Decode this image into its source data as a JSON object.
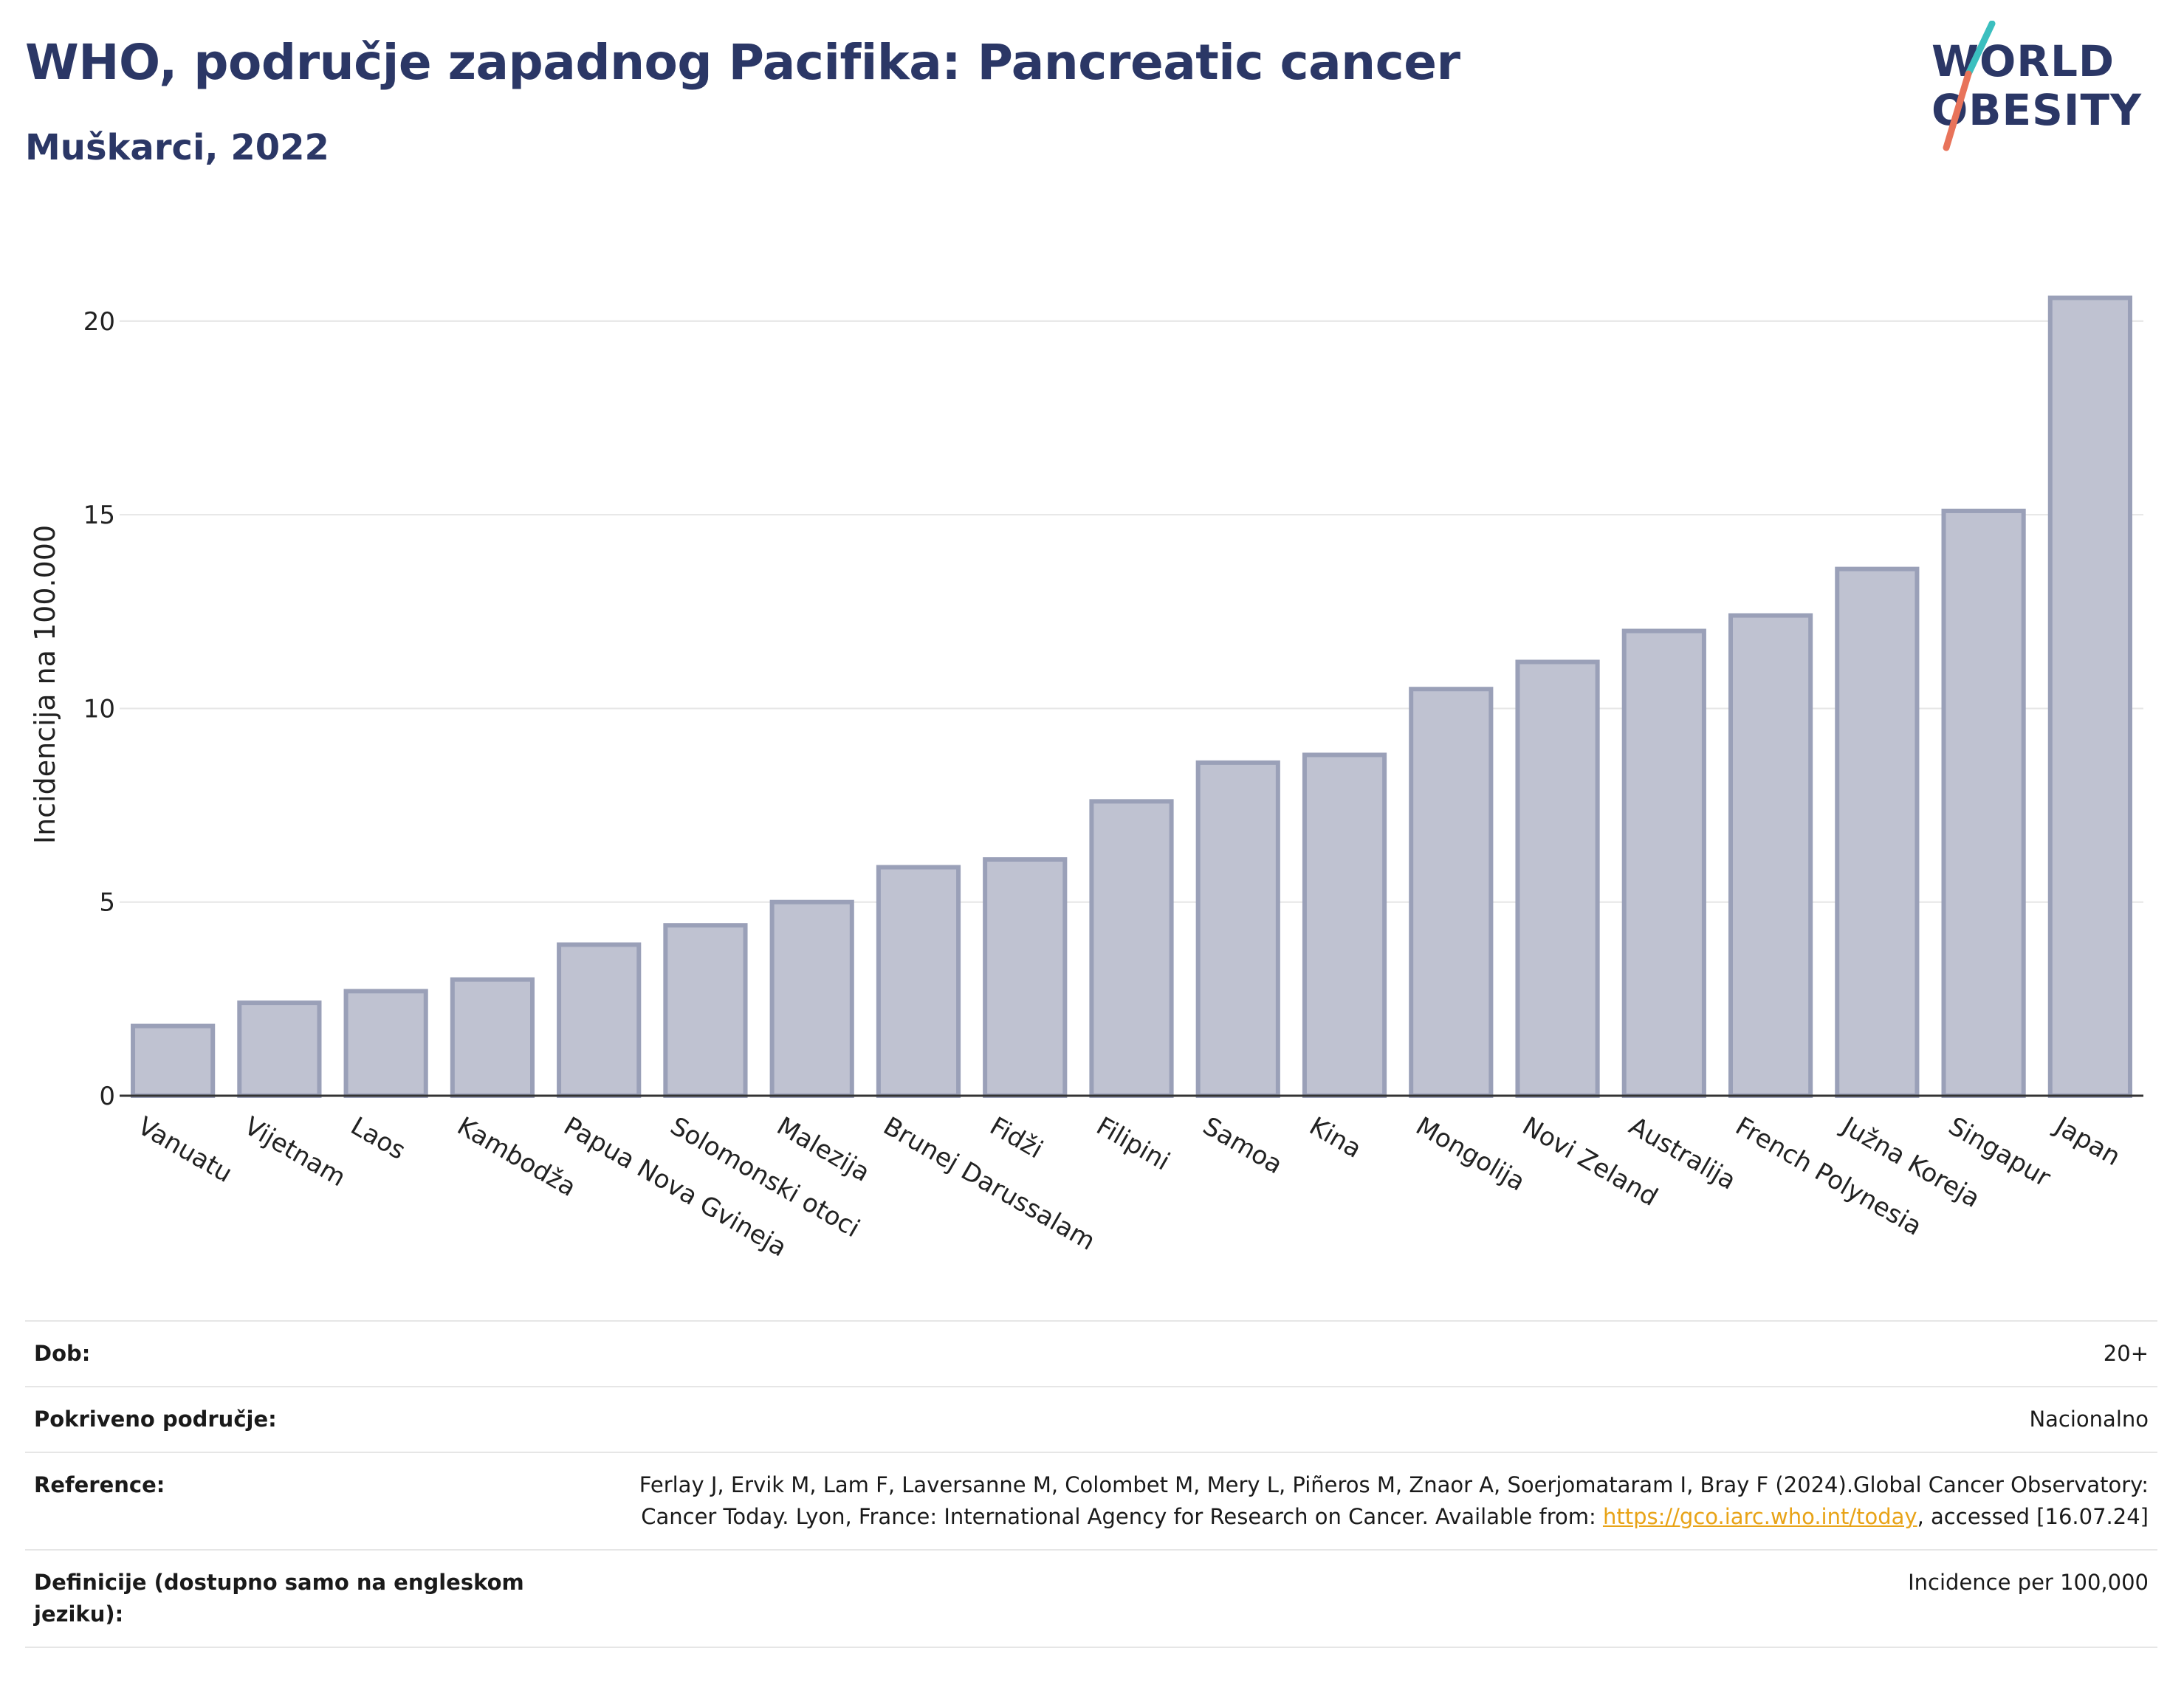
{
  "header": {
    "title": "WHO, područje zapadnog Pacifika: Pancreatic cancer",
    "subtitle": "Muškarci, 2022"
  },
  "logo": {
    "line1": "WORLD",
    "line2": "OBESITY",
    "accent_teal": "#3bbfbf",
    "accent_coral": "#e8735a"
  },
  "colors": {
    "title": "#2b3766",
    "bar_fill": "#bfc2d1",
    "bar_stroke": "#9aa0b8",
    "grid": "#e6e6e6",
    "link": "#e8a317"
  },
  "chart_data": {
    "type": "bar",
    "title": "WHO, područje zapadnog Pacifika: Pancreatic cancer",
    "subtitle": "Muškarci, 2022",
    "xlabel": "",
    "ylabel": "Incidencija na 100.000",
    "ylim": [
      0,
      22
    ],
    "yticks": [
      0,
      5,
      10,
      15,
      20
    ],
    "grid": true,
    "categories": [
      "Vanuatu",
      "Vijetnam",
      "Laos",
      "Kambodža",
      "Papua Nova Gvineja",
      "Solomonski otoci",
      "Malezija",
      "Brunej Darussalam",
      "Fidži",
      "Filipini",
      "Samoa",
      "Kina",
      "Mongolija",
      "Novi Zeland",
      "Australija",
      "French Polynesia",
      "Južna Koreja",
      "Singapur",
      "Japan"
    ],
    "values": [
      1.8,
      2.4,
      2.7,
      3.0,
      3.9,
      4.4,
      5.0,
      5.9,
      6.1,
      7.6,
      8.6,
      8.8,
      10.5,
      11.2,
      12.0,
      12.4,
      13.6,
      15.1,
      20.6
    ]
  },
  "meta": {
    "rows": [
      {
        "label": "Dob:",
        "value": "20+"
      },
      {
        "label": "Pokriveno područje:",
        "value": "Nacionalno"
      },
      {
        "label": "Reference:",
        "value_pre": "Ferlay J, Ervik M, Lam F, Laversanne M, Colombet M, Mery L, Piñeros M, Znaor A, Soerjomataram I, Bray F (2024).Global Cancer Observatory: Cancer Today. Lyon, France: International Agency for Research on Cancer. Available from: ",
        "link": "https://gco.iarc.who.int/today",
        "value_post": ", accessed [16.07.24]"
      },
      {
        "label": "Definicije (dostupno samo na engleskom jeziku):",
        "value": "Incidence per 100,000"
      }
    ]
  }
}
